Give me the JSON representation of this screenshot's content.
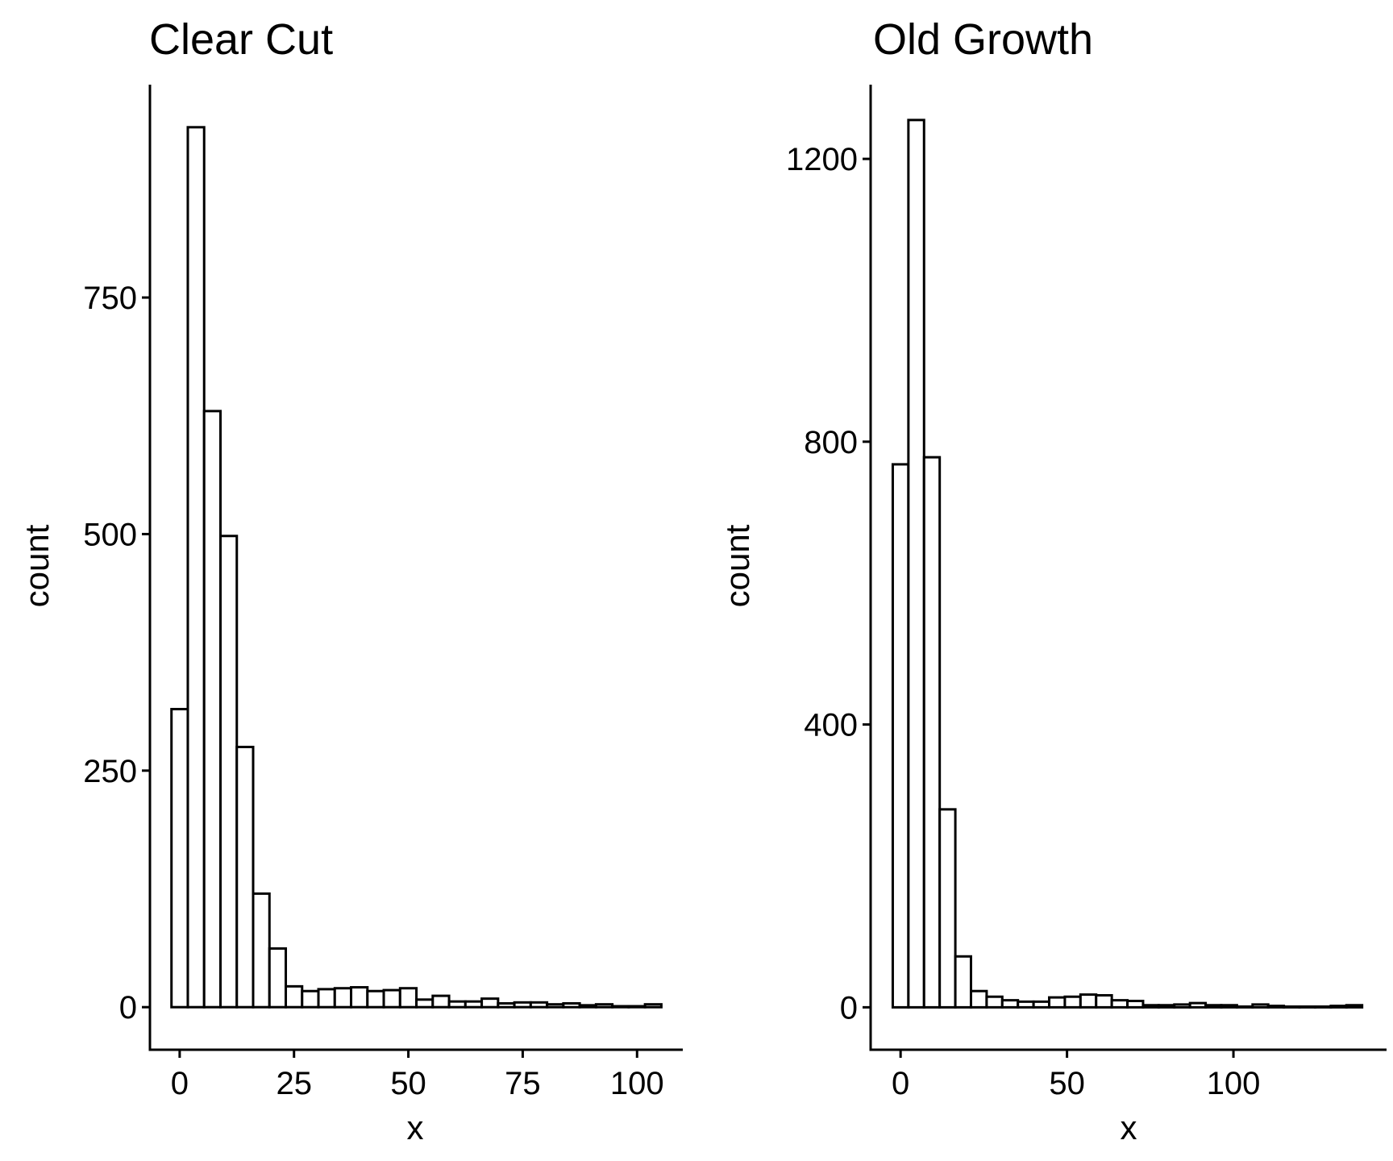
{
  "chart_data": [
    {
      "type": "bar",
      "title": "Clear Cut",
      "xlabel": "x",
      "ylabel": "count",
      "xlim": [
        -6.5,
        110
      ],
      "ylim": [
        -45,
        975
      ],
      "bin_width": 3.57,
      "x_start": -1.79,
      "counts": [
        315,
        930,
        630,
        498,
        275,
        120,
        62,
        22,
        17,
        19,
        20,
        21,
        17,
        18,
        20,
        8,
        12,
        6,
        6,
        9,
        4,
        5,
        5,
        3,
        4,
        2,
        3,
        1,
        1,
        3
      ],
      "xticks": [
        0,
        25,
        50,
        75,
        100
      ],
      "xtick_labels": [
        "0",
        "25",
        "50",
        "75",
        "100"
      ],
      "yticks": [
        0,
        250,
        500,
        750
      ],
      "ytick_labels": [
        "0",
        "250",
        "500",
        "750"
      ],
      "grid": false,
      "legend": "none",
      "fill": "#ffffff",
      "stroke": "#000000"
    },
    {
      "type": "bar",
      "title": "Old Growth",
      "xlabel": "x",
      "ylabel": "count",
      "xlim": [
        -9,
        146
      ],
      "ylim": [
        -60,
        1305
      ],
      "bin_width": 4.7,
      "x_start": -2.35,
      "counts": [
        768,
        1255,
        778,
        280,
        72,
        23,
        15,
        10,
        8,
        8,
        14,
        15,
        18,
        17,
        10,
        9,
        3,
        3,
        4,
        6,
        3,
        3,
        1,
        4,
        2,
        1,
        1,
        1,
        2,
        3
      ],
      "xticks": [
        0,
        50,
        100
      ],
      "xtick_labels": [
        "0",
        "50",
        "100"
      ],
      "yticks": [
        0,
        400,
        800,
        1200
      ],
      "ytick_labels": [
        "0",
        "400",
        "800",
        "1200"
      ],
      "grid": false,
      "legend": "none",
      "fill": "#ffffff",
      "stroke": "#000000"
    }
  ]
}
